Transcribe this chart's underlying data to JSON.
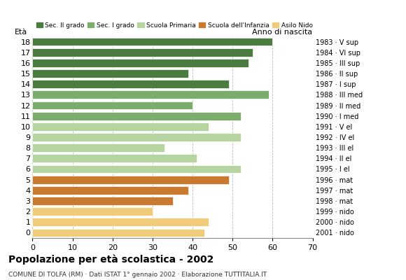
{
  "ages": [
    18,
    17,
    16,
    15,
    14,
    13,
    12,
    11,
    10,
    9,
    8,
    7,
    6,
    5,
    4,
    3,
    2,
    1,
    0
  ],
  "values": [
    60,
    55,
    54,
    39,
    49,
    59,
    40,
    52,
    44,
    52,
    33,
    41,
    52,
    49,
    39,
    35,
    30,
    44,
    43
  ],
  "anno_nascita_by_age": {
    "18": "1983 · V sup",
    "17": "1984 · VI sup",
    "16": "1985 · III sup",
    "15": "1986 · II sup",
    "14": "1987 · I sup",
    "13": "1988 · III med",
    "12": "1989 · II med",
    "11": "1990 · I med",
    "10": "1991 · V el",
    "9": "1992 · IV el",
    "8": "1993 · III el",
    "7": "1994 · II el",
    "6": "1995 · I el",
    "5": "1996 · mat",
    "4": "1997 · mat",
    "3": "1998 · mat",
    "2": "1999 · nido",
    "1": "2000 · nido",
    "0": "2001 · nido"
  },
  "colors_by_age": {
    "18": "#4a7c3f",
    "17": "#4a7c3f",
    "16": "#4a7c3f",
    "15": "#4a7c3f",
    "14": "#4a7c3f",
    "13": "#7aad6b",
    "12": "#7aad6b",
    "11": "#7aad6b",
    "10": "#b5d4a0",
    "9": "#b5d4a0",
    "8": "#b5d4a0",
    "7": "#b5d4a0",
    "6": "#b5d4a0",
    "5": "#c97a2e",
    "4": "#c97a2e",
    "3": "#c97a2e",
    "2": "#f0cc7a",
    "1": "#f0cc7a",
    "0": "#f0cc7a"
  },
  "legend_labels": [
    "Sec. II grado",
    "Sec. I grado",
    "Scuola Primaria",
    "Scuola dell'Infanzia",
    "Asilo Nido"
  ],
  "legend_colors": [
    "#4a7c3f",
    "#7aad6b",
    "#b5d4a0",
    "#c97a2e",
    "#f0cc7a"
  ],
  "title": "Popolazione per età scolastica - 2002",
  "subtitle": "COMUNE DI TOLFA (RM) · Dati ISTAT 1° gennaio 2002 · Elaborazione TUTTITALIA.IT",
  "label_left": "Età",
  "label_right": "Anno di nascita",
  "xlim": [
    0,
    70
  ],
  "xticks": [
    0,
    10,
    20,
    30,
    40,
    50,
    60,
    70
  ],
  "background_color": "#ffffff",
  "grid_color": "#bbbbbb"
}
